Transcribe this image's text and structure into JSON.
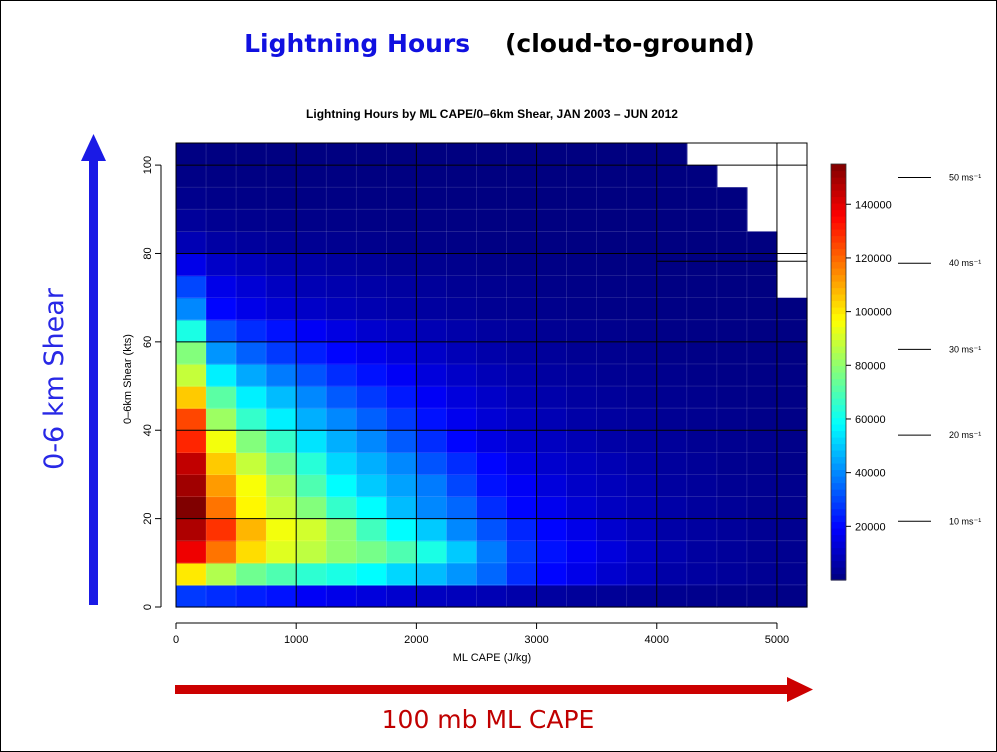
{
  "slide": {
    "title_part1": "Lightning Hours",
    "title_part2": "(cloud-to-ground)",
    "left_arrow_label": "0-6 km Shear",
    "bottom_arrow_label": "100 mb ML CAPE"
  },
  "colors": {
    "blue_arrow": "#1a1ae6",
    "red_arrow": "#cc0000"
  },
  "chart_data": {
    "type": "heatmap",
    "title": "Lightning Hours by ML CAPE/0–6km Shear, JAN 2003 – JUN 2012",
    "xlabel": "ML CAPE (J/kg)",
    "ylabel": "0–6km Shear (kts)",
    "xlim": [
      0,
      5250
    ],
    "ylim": [
      0,
      105
    ],
    "x_bin_width": 250,
    "y_bin_width": 5,
    "x_ticks": [
      0,
      1000,
      2000,
      3000,
      4000,
      5000
    ],
    "y_ticks": [
      0,
      20,
      40,
      60,
      80,
      100
    ],
    "colorbar": {
      "min": 0,
      "max": 155000,
      "ticks": [
        20000,
        40000,
        60000,
        80000,
        100000,
        120000,
        140000
      ],
      "tick_labels": [
        "20000",
        "40000",
        "60000",
        "80000",
        "100000",
        "120000",
        "140000"
      ]
    },
    "ms_reference": [
      {
        "label": "10 ms⁻¹",
        "shear_kts": 19.4
      },
      {
        "label": "20 ms⁻¹",
        "shear_kts": 38.9
      },
      {
        "label": "30 ms⁻¹",
        "shear_kts": 58.3
      },
      {
        "label": "40 ms⁻¹",
        "shear_kts": 77.8
      },
      {
        "label": "50 ms⁻¹",
        "shear_kts": 97.2
      }
    ],
    "missing_row_starts": [
      21,
      21,
      21,
      21,
      21,
      21,
      21,
      21,
      21,
      21,
      21,
      21,
      21,
      21,
      20,
      20,
      20,
      19,
      19,
      18,
      16
    ],
    "values_low_rows": [
      [
        28000,
        26000,
        24000,
        22000,
        18000,
        16000,
        14000,
        12000,
        10000,
        9000,
        8000,
        6500,
        5000,
        4000,
        3500,
        3000,
        2500,
        2000,
        1800,
        1500,
        1200
      ],
      [
        100000,
        85000,
        75000,
        70000,
        65000,
        62000,
        58000,
        52000,
        48000,
        42000,
        35000,
        26000,
        20000,
        16000,
        12000,
        9000,
        6000,
        5000,
        4000,
        3000,
        2500
      ],
      [
        138000,
        118000,
        102000,
        92000,
        87000,
        80000,
        76000,
        70000,
        62000,
        50000,
        38000,
        28000,
        22000,
        18000,
        14000,
        10000,
        7000,
        5000,
        4000,
        3000,
        2500
      ],
      [
        148000,
        128000,
        108000,
        95000,
        90000,
        80000,
        68000,
        58000,
        50000,
        40000,
        32000,
        25000,
        20000,
        16000,
        12000,
        9000,
        6000,
        5000,
        4000,
        3000,
        2500
      ],
      [
        155000,
        118000,
        98000,
        88000,
        78000,
        66000,
        58000,
        48000,
        40000,
        35000,
        26000,
        20000,
        17000,
        13000,
        10000,
        8000,
        6000,
        4500,
        3500,
        2500,
        2000
      ],
      [
        150000,
        112000,
        96000,
        84000,
        70000,
        58000,
        50000,
        44000,
        38000,
        30000,
        22000,
        18000,
        14000,
        11000,
        9000,
        7000,
        5000,
        4000,
        3000,
        2500,
        2000
      ],
      [
        145000,
        105000,
        88000,
        76000,
        64000,
        52000,
        46000,
        40000,
        32000,
        26000,
        20000,
        15000,
        12000,
        10000,
        8000,
        6000,
        4500,
        3500,
        2500,
        2000,
        1500
      ],
      [
        130000,
        95000,
        78000,
        66000,
        54000,
        46000,
        40000,
        33000,
        26000,
        20000,
        15000,
        12000,
        10000,
        8000,
        6000,
        5000,
        4000,
        3000,
        2500,
        2000,
        1500
      ],
      [
        125000,
        82000,
        66000,
        56000,
        46000,
        40000,
        34000,
        28000,
        22000,
        17000,
        13000,
        10000,
        8000,
        6000,
        5000,
        4000,
        3000,
        2500,
        2000,
        1500,
        1200
      ],
      [
        105000,
        72000,
        56000,
        48000,
        40000,
        33000,
        28000,
        23000,
        18000,
        14000,
        11000,
        8000,
        6500,
        5000,
        4000,
        3000,
        2500,
        2000,
        1500,
        1200,
        1000
      ],
      [
        88000,
        56000,
        45000,
        38000,
        32000,
        26000,
        22000,
        18000,
        14000,
        11000,
        8500,
        6500,
        5000,
        4000,
        3000,
        2500,
        2000,
        1500,
        1200,
        1000,
        800
      ],
      [
        78000,
        42000,
        34000,
        28000,
        24000,
        20000,
        17000,
        14000,
        11000,
        8500,
        6500,
        5000,
        4000,
        3000,
        2500,
        2000,
        1500,
        1200,
        1000,
        800,
        600
      ],
      [
        62000,
        32000,
        26000,
        22000,
        18000,
        15000,
        12000,
        10000,
        8000,
        6500,
        5000,
        4000,
        3000,
        2500,
        2000,
        1500,
        1200,
        1000,
        800,
        600,
        500
      ],
      [
        40000,
        20000,
        16000,
        13000,
        11000,
        9000,
        7500,
        6000,
        5000,
        4000,
        3000,
        2500,
        2000,
        1500,
        1200,
        1000,
        800,
        600,
        500,
        400,
        300
      ],
      [
        30000,
        16000,
        13000,
        10000,
        8000,
        7000,
        6000,
        5000,
        4000,
        3000,
        2500,
        2000,
        1500,
        1200,
        1000,
        800,
        600,
        500,
        400,
        300,
        200
      ],
      [
        16000,
        11000,
        9000,
        7000,
        6000,
        5000,
        4000,
        3000,
        2500,
        2000,
        1500,
        1200,
        1000,
        800,
        600,
        500,
        400,
        300,
        200,
        150,
        100
      ]
    ]
  }
}
